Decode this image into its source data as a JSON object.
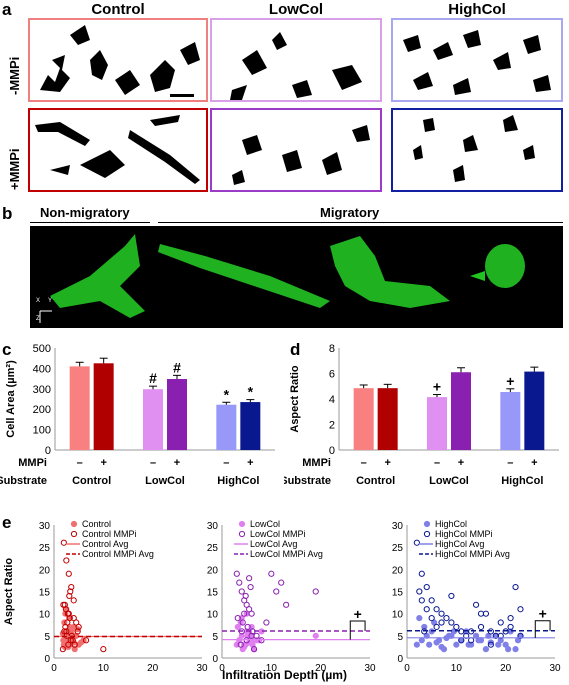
{
  "panel_a": {
    "label": "a",
    "columns": [
      "Control",
      "LowCol",
      "HighCol"
    ],
    "rows": [
      "-MMPi",
      "+MMPi"
    ],
    "border_colors": [
      [
        "#f08080",
        "#d8a0e8",
        "#a8a8f0"
      ],
      [
        "#c00000",
        "#9a3cc8",
        "#1020a0"
      ]
    ]
  },
  "panel_b": {
    "label": "b",
    "non_migratory": "Non-migratory",
    "migratory": "Migratory",
    "axes": {
      "x": "X",
      "y": "Y",
      "z": "Z"
    }
  },
  "chart_data": [
    {
      "type": "bar",
      "panel": "c",
      "ylabel": "Cell Area (µm²)",
      "ylim": [
        0,
        500
      ],
      "yticks": [
        0,
        100,
        200,
        300,
        400,
        500
      ],
      "groups": [
        "Control",
        "LowCol",
        "HighCol"
      ],
      "row1_label": "MMPi",
      "row2_label": "Substrate",
      "mmpi_marks": [
        "–",
        "+",
        "–",
        "+",
        "–",
        "+"
      ],
      "bars": [
        {
          "group": "Control",
          "mmpi": "–",
          "value": 410,
          "err": 20,
          "color": "#f88080",
          "mark": ""
        },
        {
          "group": "Control",
          "mmpi": "+",
          "value": 425,
          "err": 25,
          "color": "#b00000",
          "mark": ""
        },
        {
          "group": "LowCol",
          "mmpi": "–",
          "value": 298,
          "err": 15,
          "color": "#e090f0",
          "mark": "#"
        },
        {
          "group": "LowCol",
          "mmpi": "+",
          "value": 348,
          "err": 18,
          "color": "#8a20b0",
          "mark": "#"
        },
        {
          "group": "HighCol",
          "mmpi": "–",
          "value": 222,
          "err": 12,
          "color": "#9898f8",
          "mark": "*"
        },
        {
          "group": "HighCol",
          "mmpi": "+",
          "value": 235,
          "err": 12,
          "color": "#0a1890",
          "mark": "*"
        }
      ]
    },
    {
      "type": "bar",
      "panel": "d",
      "ylabel": "Aspect Ratio",
      "ylim": [
        0,
        8
      ],
      "yticks": [
        0,
        2,
        4,
        6,
        8
      ],
      "groups": [
        "Control",
        "LowCol",
        "HighCol"
      ],
      "row1_label": "MMPi",
      "row2_label": "Substrate",
      "mmpi_marks": [
        "–",
        "+",
        "–",
        "+",
        "–",
        "+"
      ],
      "bars": [
        {
          "group": "Control",
          "mmpi": "–",
          "value": 4.85,
          "err": 0.25,
          "color": "#f88080",
          "mark": ""
        },
        {
          "group": "Control",
          "mmpi": "+",
          "value": 4.85,
          "err": 0.3,
          "color": "#b00000",
          "mark": ""
        },
        {
          "group": "LowCol",
          "mmpi": "–",
          "value": 4.15,
          "err": 0.2,
          "color": "#e090f0",
          "mark": "+"
        },
        {
          "group": "LowCol",
          "mmpi": "+",
          "value": 6.1,
          "err": 0.35,
          "color": "#8a20b0",
          "mark": ""
        },
        {
          "group": "HighCol",
          "mmpi": "–",
          "value": 4.55,
          "err": 0.25,
          "color": "#9898f8",
          "mark": "+"
        },
        {
          "group": "HighCol",
          "mmpi": "+",
          "value": 6.15,
          "err": 0.35,
          "color": "#0a1890",
          "mark": ""
        }
      ]
    },
    {
      "type": "scatter",
      "panel": "e1",
      "ylabel": "Aspect Ratio",
      "xlim": [
        0,
        30
      ],
      "ylim": [
        0,
        30
      ],
      "xticks": [
        0,
        10,
        20,
        30
      ],
      "yticks": [
        0,
        5,
        10,
        15,
        20,
        25,
        30
      ],
      "legend": [
        "Control",
        "Control MMPi",
        "Control Avg",
        "Control MMPi Avg"
      ],
      "color_a": "#f07070",
      "color_b": "#c00000",
      "avg_a": 4.85,
      "avg_b": 4.85,
      "series": [
        {
          "name": "Control",
          "filled": true,
          "x": [
            2,
            2.5,
            3,
            3.5,
            4,
            2.2,
            2.8,
            3.2,
            4.5,
            5,
            2.1,
            2.6,
            3.8,
            4.2,
            1.8,
            2.4,
            3.1,
            3.6,
            4.8,
            5.5,
            2.3,
            2.9,
            3.4,
            4,
            1.9,
            2.7,
            3.3,
            6,
            4.4,
            2.5
          ],
          "y": [
            3,
            4,
            5,
            6,
            3.5,
            2.5,
            4.5,
            7,
            5,
            3,
            8,
            6,
            4,
            2,
            5.5,
            3,
            9,
            4,
            6.5,
            3.5,
            10,
            2.5,
            5,
            7,
            4,
            6,
            3,
            4,
            5,
            11
          ]
        },
        {
          "name": "Control MMPi",
          "filled": false,
          "x": [
            2,
            2.5,
            3,
            3.5,
            4,
            2.2,
            2.8,
            3.2,
            4.5,
            5,
            2.1,
            2.6,
            3.8,
            4.2,
            1.8,
            2.4,
            3.1,
            3.6,
            4.8,
            2.3,
            2.9,
            3.4,
            4,
            1.9,
            2.7,
            3.3,
            6.5,
            10,
            2.5,
            3
          ],
          "y": [
            26,
            22,
            19,
            16,
            13,
            12,
            10,
            9,
            8,
            7,
            6,
            5,
            4,
            3,
            2,
            11,
            14,
            5,
            6,
            7,
            3,
            4,
            9,
            12,
            8,
            15,
            4,
            2,
            6,
            10
          ]
        }
      ]
    },
    {
      "type": "scatter",
      "panel": "e2",
      "xlim": [
        0,
        30
      ],
      "ylim": [
        0,
        30
      ],
      "xticks": [
        0,
        10,
        20,
        30
      ],
      "yticks": [
        0,
        5,
        10,
        15,
        20,
        25,
        30
      ],
      "legend": [
        "LowCol",
        "LowCol MMPi",
        "LowCol Avg",
        "LowCol MMPi Avg"
      ],
      "color_a": "#e080f0",
      "color_b": "#8a20b0",
      "avg_a": 4.15,
      "avg_b": 6.1,
      "sig_mark": "+",
      "series": [
        {
          "name": "LowCol",
          "filled": true,
          "x": [
            3,
            3.5,
            4,
            4.5,
            5,
            5.5,
            6,
            3.2,
            4.2,
            5.2,
            6.2,
            7,
            8,
            3.8,
            4.8,
            5.8,
            6.5,
            4,
            5,
            19,
            3.5,
            4.5,
            5.5,
            6,
            7.5
          ],
          "y": [
            3,
            4,
            5,
            2.5,
            6,
            3.5,
            4,
            7,
            2,
            5,
            3,
            4,
            6,
            8,
            3,
            5,
            2,
            9,
            10,
            5,
            4,
            3,
            6,
            7,
            4
          ]
        },
        {
          "name": "LowCol MMPi",
          "filled": false,
          "x": [
            3,
            3.5,
            4,
            4.5,
            5,
            5.5,
            6,
            3.2,
            4.2,
            5.2,
            6.2,
            7,
            8,
            3.8,
            4.8,
            5.8,
            6.5,
            9,
            10,
            11,
            12,
            13,
            19,
            4,
            5,
            6,
            4.5,
            5.5
          ],
          "y": [
            19,
            17,
            15,
            13,
            12,
            11,
            10,
            9,
            8,
            7,
            6,
            5,
            4,
            3,
            14,
            16,
            2,
            8,
            19,
            15,
            17,
            12,
            15,
            6,
            4,
            5,
            10,
            18
          ]
        }
      ]
    },
    {
      "type": "scatter",
      "panel": "e3",
      "xlim": [
        0,
        30
      ],
      "ylim": [
        0,
        30
      ],
      "xticks": [
        0,
        10,
        20,
        30
      ],
      "yticks": [
        0,
        5,
        10,
        15,
        20,
        25,
        30
      ],
      "legend": [
        "HighCol",
        "HighCol MMPi",
        "HighCol Avg",
        "HighCol MMPi Avg"
      ],
      "color_a": "#8080e8",
      "color_b": "#0a1890",
      "avg_a": 4.55,
      "avg_b": 6.15,
      "sig_mark": "+",
      "series": [
        {
          "name": "HighCol",
          "filled": true,
          "x": [
            2,
            3,
            4,
            5,
            6,
            7,
            8,
            9,
            10,
            11,
            12,
            13,
            14,
            15,
            16,
            17,
            18,
            19,
            20,
            21,
            22,
            23,
            3.5,
            4.5,
            5.5,
            6.5,
            7.5,
            8.5,
            9.5,
            12.5,
            14.5,
            16.5,
            18.5,
            20.5,
            22.5,
            2.5
          ],
          "y": [
            3,
            4,
            5,
            6,
            3.5,
            2.5,
            4.5,
            5,
            3,
            4,
            6,
            3,
            5,
            4,
            2,
            3.5,
            5,
            4,
            3,
            6,
            2,
            5,
            7,
            3,
            8,
            4,
            2,
            5,
            6,
            3,
            4,
            5,
            3,
            2,
            4,
            9
          ]
        },
        {
          "name": "HighCol MMPi",
          "filled": false,
          "x": [
            2,
            3,
            4,
            5,
            6,
            7,
            8,
            9,
            10,
            11,
            12,
            13,
            14,
            15,
            16,
            17,
            18,
            19,
            20,
            21,
            22,
            23,
            3,
            4,
            5,
            6,
            7,
            9,
            11,
            13,
            15,
            17,
            19,
            21,
            23,
            2.5,
            3.5
          ],
          "y": [
            26,
            19,
            16,
            13,
            11,
            10,
            9,
            8,
            7,
            6,
            5,
            4,
            12,
            7,
            10,
            6,
            5,
            8,
            6,
            9,
            16,
            5,
            13,
            11,
            9,
            7,
            8,
            14,
            4,
            6,
            10,
            3,
            5,
            7,
            11,
            15,
            6
          ]
        }
      ]
    }
  ],
  "panel_labels": {
    "c": "c",
    "d": "d",
    "e": "e"
  },
  "e_ylabel": "Aspect Ratio",
  "e_xlabel": "Infiltration Depth (µm)"
}
